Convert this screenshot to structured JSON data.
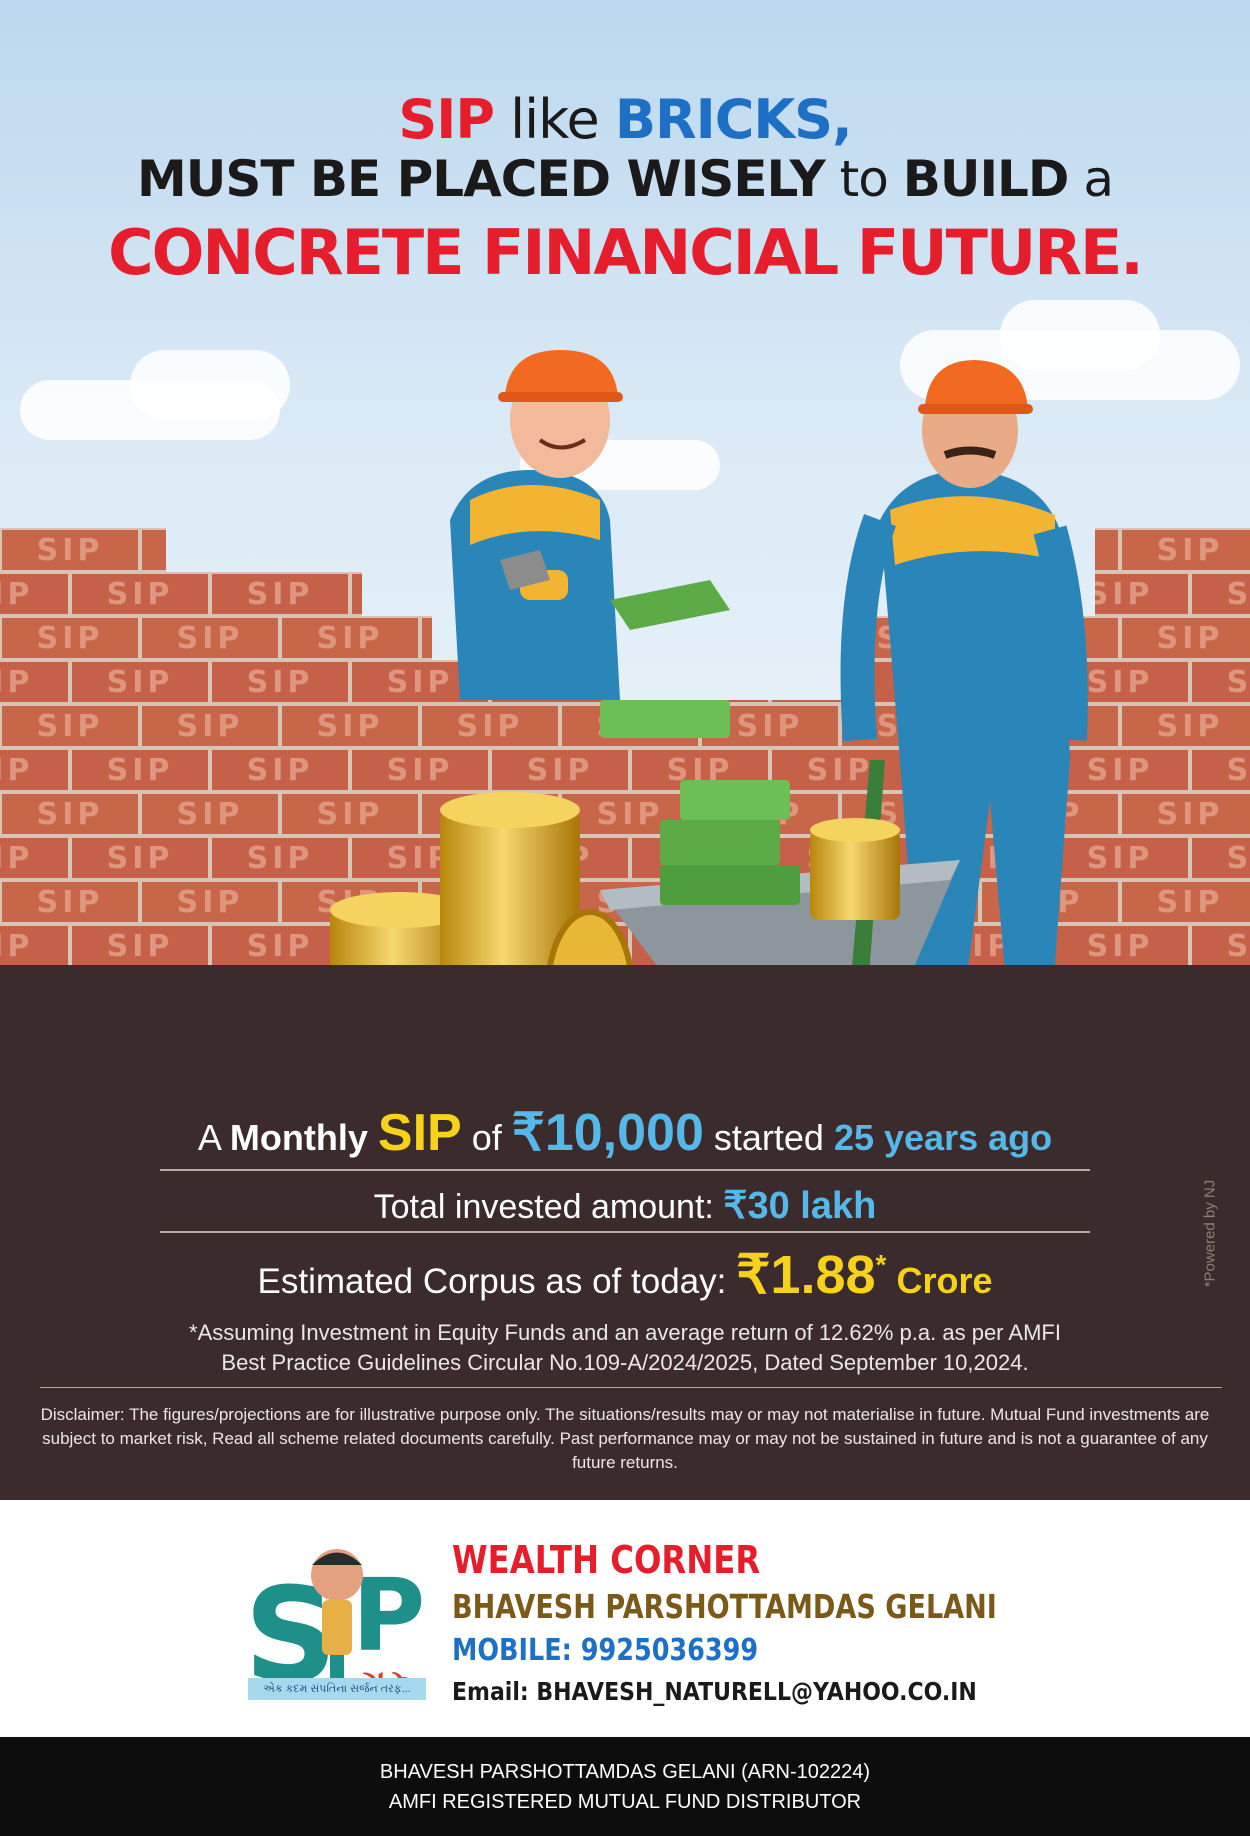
{
  "headline": {
    "line1": {
      "w1": "SIP",
      "w2": " like ",
      "w3": "BRICKS,"
    },
    "line2": {
      "w1": "MUST BE PLACED WISELY",
      "w2": " to ",
      "w3": "BUILD",
      "w4": " a"
    },
    "line3": "CONCRETE FINANCIAL FUTURE."
  },
  "brick_label": "SIP",
  "summary": {
    "l1": {
      "a": "A ",
      "monthly": "Monthly ",
      "sip": "SIP",
      "of": " of ",
      "amount": "₹10,000",
      "started": " started ",
      "years": "25 years ago"
    },
    "l2": {
      "label": "Total invested amount: ",
      "amount": "₹30 lakh"
    },
    "l3": {
      "label": "Estimated Corpus as of today: ",
      "amount": "₹1.88",
      "star": "*",
      "unit": " Crore"
    },
    "note1": "*Assuming Investment in Equity Funds and an average return of 12.62% p.a. as per AMFI",
    "note2": "Best Practice  Guidelines Circular No.109-A/2024/2025, Dated September 10,2024.",
    "disclaimer": "Disclaimer: The figures/projections are for illustrative purpose only. The situations/results may or may not materialise in future. Mutual Fund investments are subject to market risk, Read all scheme related documents carefully. Past performance may or may not be sustained in future and is not a guarantee of any future returns.",
    "powered": "*Powered by NJ"
  },
  "contact": {
    "logo_text": "SIP",
    "logo_suffix": "ગુરુ",
    "tagline": "એક કદમ સંપતિના સર્જન તરફ...",
    "company": "WEALTH CORNER",
    "name": "BHAVESH PARSHOTTAMDAS GELANI",
    "mobile": "MOBILE: 9925036399",
    "email": "Email: BHAVESH_NATURELL@YAHOO.CO.IN"
  },
  "footer": {
    "line1": "BHAVESH PARSHOTTAMDAS GELANI (ARN-102224)",
    "line2": "AMFI REGISTERED MUTUAL FUND DISTRIBUTOR"
  },
  "colors": {
    "red": "#e61e2b",
    "blue": "#1e6fc6",
    "gold": "#f6d21b",
    "cyan": "#56b8e8",
    "panel": "#3b2b2d",
    "brick": "#c8664a"
  }
}
